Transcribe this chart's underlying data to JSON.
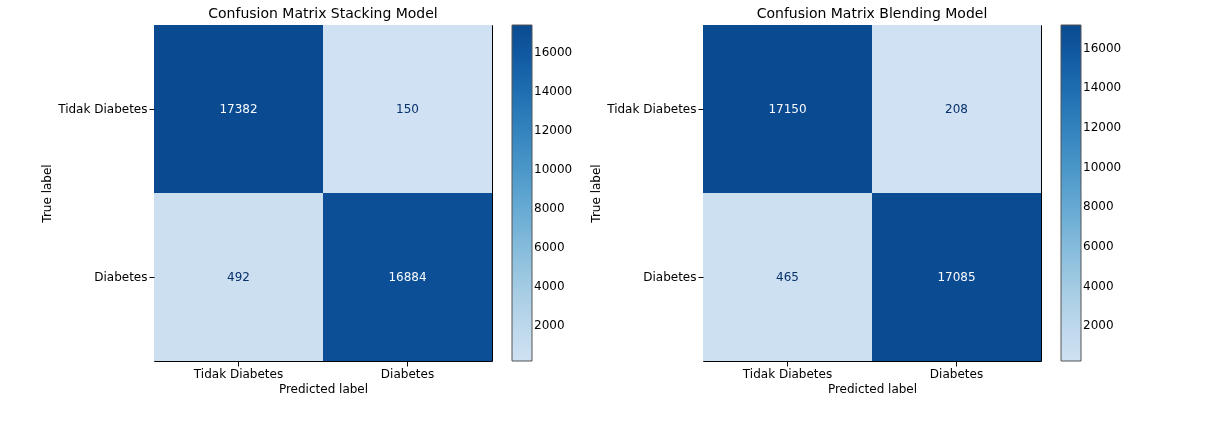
{
  "chart_data": [
    {
      "type": "heatmap",
      "title": "Confusion Matrix Stacking Model",
      "xlabel": "Predicted label",
      "ylabel": "True label",
      "categories": [
        "Tidak Diabetes",
        "Diabetes"
      ],
      "y_categories": [
        "Tidak Diabetes",
        "Diabetes"
      ],
      "cells": [
        [
          17382,
          150
        ],
        [
          492,
          16884
        ]
      ],
      "data_labels": true,
      "clim": [
        150,
        17382
      ],
      "cticks": [
        2000,
        4000,
        6000,
        8000,
        10000,
        12000,
        14000,
        16000
      ]
    },
    {
      "type": "heatmap",
      "title": "Confusion Matrix Blending Model",
      "xlabel": "Predicted label",
      "ylabel": "True label",
      "categories": [
        "Tidak Diabetes",
        "Diabetes"
      ],
      "y_categories": [
        "Tidak Diabetes",
        "Diabetes"
      ],
      "cells": [
        [
          17150,
          208
        ],
        [
          465,
          17085
        ]
      ],
      "data_labels": true,
      "clim": [
        208,
        17150
      ],
      "cticks": [
        2000,
        4000,
        6000,
        8000,
        10000,
        12000,
        14000,
        16000
      ]
    }
  ]
}
